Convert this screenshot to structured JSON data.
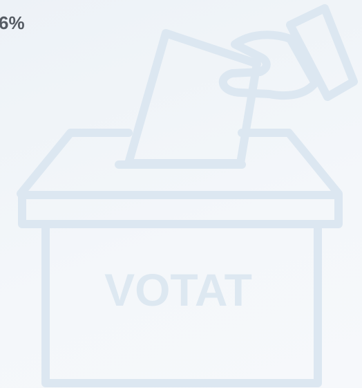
{
  "percentage": "6%",
  "box_label": "VOTAT"
}
